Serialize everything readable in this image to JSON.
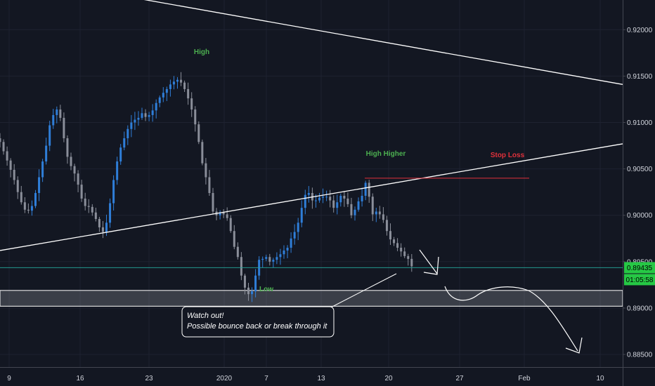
{
  "chart_data": {
    "type": "candlestick",
    "instrument_hint": "forex pair, intraday candles",
    "y_ticks": [
      "0.92000",
      "0.91500",
      "0.91000",
      "0.90500",
      "0.90000",
      "0.89500",
      "0.89000",
      "0.88500"
    ],
    "x_ticks": [
      "9",
      "16",
      "23",
      "2020",
      "7",
      "13",
      "20",
      "27",
      "Feb",
      "10"
    ],
    "ylim": [
      0.8816,
      0.9232
    ],
    "current_price": "0.89435",
    "countdown": "01:05:58",
    "grid": true,
    "support_zone": {
      "low": 0.8902,
      "high": 0.8919
    },
    "trendlines": [
      {
        "name": "upper",
        "from": [
          0.0,
          0.926
        ],
        "to": [
          1.0,
          0.9141
        ]
      },
      {
        "name": "lower",
        "from": [
          0.0,
          0.8962
        ],
        "to": [
          1.0,
          0.9077
        ]
      }
    ],
    "stop_loss_level": 0.904,
    "annotations": {
      "high": "High",
      "high_higher": "High Higher",
      "stop_loss": "Stop Loss",
      "low": "Low",
      "callout_line1": "Watch out!",
      "callout_line2": "Possible bounce back or break through it"
    },
    "close_path": [
      0.9079,
      0.9069,
      0.9059,
      0.9049,
      0.9038,
      0.9025,
      0.9014,
      0.9006,
      0.9005,
      0.901,
      0.9024,
      0.9041,
      0.9058,
      0.9075,
      0.9097,
      0.9108,
      0.9114,
      0.9105,
      0.9083,
      0.9063,
      0.9053,
      0.9045,
      0.9033,
      0.9018,
      0.901,
      0.9009,
      0.9003,
      0.8996,
      0.8987,
      0.8982,
      0.8992,
      0.9013,
      0.9038,
      0.9058,
      0.9073,
      0.9083,
      0.9093,
      0.91,
      0.9103,
      0.9105,
      0.911,
      0.9106,
      0.9108,
      0.9113,
      0.9121,
      0.9127,
      0.9132,
      0.9136,
      0.9141,
      0.9144,
      0.9146,
      0.9143,
      0.9136,
      0.9126,
      0.9114,
      0.9098,
      0.9079,
      0.9056,
      0.9041,
      0.9024,
      0.9004,
      0.9,
      0.9003,
      0.9001,
      0.8997,
      0.8983,
      0.8966,
      0.8955,
      0.8935,
      0.8922,
      0.8915,
      0.8918,
      0.8935,
      0.8952,
      0.8953,
      0.8955,
      0.895,
      0.8952,
      0.8955,
      0.8958,
      0.8962,
      0.8965,
      0.8975,
      0.8982,
      0.8992,
      0.9008,
      0.9022,
      0.9024,
      0.9016,
      0.9016,
      0.9019,
      0.902,
      0.902,
      0.9016,
      0.9008,
      0.9014,
      0.9021,
      0.9018,
      0.9012,
      0.9,
      0.9006,
      0.9015,
      0.9021,
      0.9035,
      0.902,
      0.9001,
      0.9004,
      0.9001,
      0.8995,
      0.8983,
      0.8974,
      0.897,
      0.8965,
      0.8961,
      0.8956,
      0.8953,
      0.8945
    ]
  }
}
